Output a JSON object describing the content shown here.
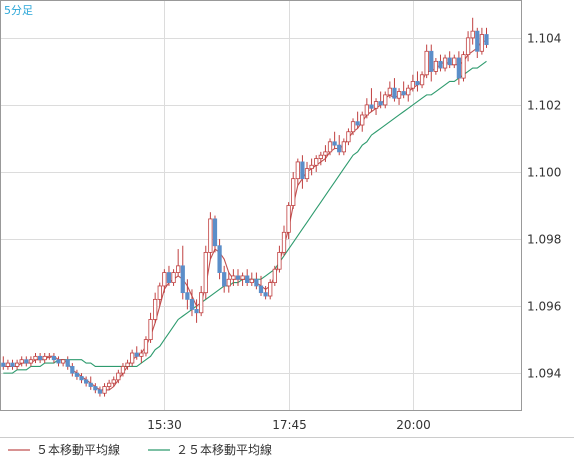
{
  "timeframe_label": "5分足",
  "colors": {
    "up_candle": "#ffffff",
    "down_candle": "#5b8ec9",
    "candle_outline": "#c04040",
    "ma5": "#c05050",
    "ma25": "#2e9b6e",
    "grid": "#dcdcdc",
    "border": "#999999",
    "timeframe": "#2aa6d8"
  },
  "legend": [
    {
      "label": "５本移動平均線",
      "color_key": "ma5"
    },
    {
      "label": "２５本移動平均線",
      "color_key": "ma25"
    }
  ],
  "chart_data": {
    "type": "candlestick",
    "x_ticks": [
      {
        "label": "15:30",
        "index": 35
      },
      {
        "label": "17:45",
        "index": 62
      },
      {
        "label": "20:00",
        "index": 89
      }
    ],
    "y_ticks": [
      "1.094",
      "1.096",
      "1.098",
      "1.100",
      "1.102",
      "1.104"
    ],
    "ylim": [
      1.0929,
      1.1051
    ],
    "bar_count": 113,
    "candles": [
      [
        1.0943,
        1.0945,
        1.0941,
        1.0942
      ],
      [
        1.0942,
        1.0944,
        1.0941,
        1.0943
      ],
      [
        1.0943,
        1.0944,
        1.0941,
        1.0942
      ],
      [
        1.0942,
        1.0944,
        1.0941,
        1.0943
      ],
      [
        1.0943,
        1.0945,
        1.0942,
        1.0944
      ],
      [
        1.0944,
        1.0945,
        1.0942,
        1.0943
      ],
      [
        1.0943,
        1.0945,
        1.0942,
        1.0944
      ],
      [
        1.0944,
        1.0946,
        1.0943,
        1.0945
      ],
      [
        1.0945,
        1.0946,
        1.0943,
        1.0944
      ],
      [
        1.0944,
        1.0946,
        1.0943,
        1.0945
      ],
      [
        1.0945,
        1.0946,
        1.0944,
        1.0945
      ],
      [
        1.0945,
        1.0946,
        1.0943,
        1.0944
      ],
      [
        1.0944,
        1.0945,
        1.0942,
        1.0943
      ],
      [
        1.0943,
        1.0944,
        1.0942,
        1.0944
      ],
      [
        1.0944,
        1.0945,
        1.0941,
        1.0942
      ],
      [
        1.0942,
        1.0943,
        1.0939,
        1.094
      ],
      [
        1.094,
        1.0941,
        1.0938,
        1.0939
      ],
      [
        1.0939,
        1.094,
        1.0937,
        1.0938
      ],
      [
        1.0938,
        1.0939,
        1.0936,
        1.0937
      ],
      [
        1.0937,
        1.0939,
        1.0935,
        1.0936
      ],
      [
        1.0936,
        1.0937,
        1.0934,
        1.0935
      ],
      [
        1.0935,
        1.0936,
        1.0933,
        1.0934
      ],
      [
        1.0934,
        1.0937,
        1.0933,
        1.0936
      ],
      [
        1.0936,
        1.0938,
        1.0935,
        1.0937
      ],
      [
        1.0937,
        1.0939,
        1.0936,
        1.0938
      ],
      [
        1.0938,
        1.0941,
        1.0937,
        1.094
      ],
      [
        1.094,
        1.0943,
        1.0939,
        1.0942
      ],
      [
        1.0942,
        1.0944,
        1.0941,
        1.0943
      ],
      [
        1.0943,
        1.0947,
        1.0942,
        1.0946
      ],
      [
        1.0946,
        1.0948,
        1.0944,
        1.0945
      ],
      [
        1.0945,
        1.0947,
        1.0943,
        1.0946
      ],
      [
        1.0946,
        1.0951,
        1.0945,
        1.095
      ],
      [
        1.095,
        1.0958,
        1.0949,
        1.0956
      ],
      [
        1.0956,
        1.0964,
        1.0955,
        1.0962
      ],
      [
        1.0962,
        1.0967,
        1.096,
        1.0966
      ],
      [
        1.0966,
        1.0971,
        1.0964,
        1.097
      ],
      [
        1.097,
        1.0972,
        1.0966,
        1.0967
      ],
      [
        1.0967,
        1.0971,
        1.0966,
        1.097
      ],
      [
        1.097,
        1.0977,
        1.0969,
        1.0972
      ],
      [
        1.0972,
        1.0978,
        1.0962,
        1.0964
      ],
      [
        1.0964,
        1.0968,
        1.0959,
        1.0962
      ],
      [
        1.0962,
        1.0965,
        1.0957,
        1.0959
      ],
      [
        1.0959,
        1.0962,
        1.0955,
        1.0958
      ],
      [
        1.0958,
        1.0966,
        1.0957,
        1.0964
      ],
      [
        1.0964,
        1.0978,
        1.0962,
        1.0976
      ],
      [
        1.0976,
        1.0988,
        1.0974,
        1.0986
      ],
      [
        1.0986,
        1.0987,
        1.0976,
        1.0978
      ],
      [
        1.0978,
        1.098,
        1.0968,
        1.097
      ],
      [
        1.097,
        1.0972,
        1.0964,
        1.0966
      ],
      [
        1.0966,
        1.097,
        1.0964,
        1.0968
      ],
      [
        1.0968,
        1.0971,
        1.0966,
        1.0969
      ],
      [
        1.0969,
        1.0971,
        1.0966,
        1.0968
      ],
      [
        1.0968,
        1.097,
        1.0966,
        1.0969
      ],
      [
        1.0969,
        1.0971,
        1.0966,
        1.0967
      ],
      [
        1.0967,
        1.097,
        1.0966,
        1.0968
      ],
      [
        1.0968,
        1.097,
        1.0965,
        1.0966
      ],
      [
        1.0966,
        1.0969,
        1.0963,
        1.0964
      ],
      [
        1.0964,
        1.0966,
        1.0962,
        1.0963
      ],
      [
        1.0963,
        1.0968,
        1.0962,
        1.0967
      ],
      [
        1.0967,
        1.0972,
        1.0966,
        1.0971
      ],
      [
        1.0971,
        1.0978,
        1.097,
        1.0976
      ],
      [
        1.0976,
        1.0984,
        1.0975,
        1.0982
      ],
      [
        1.0982,
        1.0991,
        1.098,
        1.099
      ],
      [
        1.099,
        1.1,
        1.0989,
        1.0998
      ],
      [
        1.0998,
        1.1004,
        1.0996,
        1.1003
      ],
      [
        1.1003,
        1.1005,
        1.0995,
        1.0998
      ],
      [
        1.0998,
        1.1003,
        1.0997,
        1.1001
      ],
      [
        1.1001,
        1.1004,
        1.0999,
        1.1002
      ],
      [
        1.1002,
        1.1005,
        1.1,
        1.1004
      ],
      [
        1.1004,
        1.1006,
        1.1002,
        1.1005
      ],
      [
        1.1005,
        1.1008,
        1.1003,
        1.1006
      ],
      [
        1.1006,
        1.101,
        1.1005,
        1.1009
      ],
      [
        1.1009,
        1.1012,
        1.1007,
        1.1008
      ],
      [
        1.1008,
        1.1011,
        1.1005,
        1.1006
      ],
      [
        1.1006,
        1.101,
        1.1005,
        1.1009
      ],
      [
        1.1009,
        1.1013,
        1.1008,
        1.1012
      ],
      [
        1.1012,
        1.1016,
        1.1011,
        1.1015
      ],
      [
        1.1015,
        1.1018,
        1.1013,
        1.1014
      ],
      [
        1.1014,
        1.1018,
        1.1012,
        1.1017
      ],
      [
        1.1017,
        1.1022,
        1.1016,
        1.102
      ],
      [
        1.102,
        1.1025,
        1.1018,
        1.1019
      ],
      [
        1.1019,
        1.1022,
        1.1017,
        1.1021
      ],
      [
        1.1021,
        1.1024,
        1.1019,
        1.102
      ],
      [
        1.102,
        1.1024,
        1.1019,
        1.1023
      ],
      [
        1.1023,
        1.1027,
        1.1022,
        1.1025
      ],
      [
        1.1025,
        1.1028,
        1.1021,
        1.1022
      ],
      [
        1.1022,
        1.1025,
        1.102,
        1.1024
      ],
      [
        1.1024,
        1.1027,
        1.1022,
        1.1023
      ],
      [
        1.1023,
        1.1026,
        1.1021,
        1.1025
      ],
      [
        1.1025,
        1.1029,
        1.1024,
        1.1027
      ],
      [
        1.1027,
        1.103,
        1.1024,
        1.1026
      ],
      [
        1.1026,
        1.103,
        1.1025,
        1.1029
      ],
      [
        1.1029,
        1.1038,
        1.1028,
        1.1036
      ],
      [
        1.1036,
        1.1038,
        1.1027,
        1.103
      ],
      [
        1.103,
        1.1034,
        1.1029,
        1.1033
      ],
      [
        1.1033,
        1.1035,
        1.103,
        1.1031
      ],
      [
        1.1031,
        1.1035,
        1.103,
        1.1034
      ],
      [
        1.1034,
        1.1036,
        1.1031,
        1.1032
      ],
      [
        1.1032,
        1.1035,
        1.1031,
        1.1034
      ],
      [
        1.1034,
        1.1036,
        1.1026,
        1.1028
      ],
      [
        1.1028,
        1.1036,
        1.1027,
        1.1035
      ],
      [
        1.1035,
        1.1042,
        1.1033,
        1.104
      ],
      [
        1.104,
        1.1046,
        1.1038,
        1.1042
      ],
      [
        1.1042,
        1.1043,
        1.1034,
        1.1036
      ],
      [
        1.1036,
        1.1043,
        1.1035,
        1.1041
      ],
      [
        1.1041,
        1.1043,
        1.1037,
        1.1038
      ]
    ],
    "ma5": [
      1.0942,
      1.0942,
      1.0942,
      1.0942,
      1.0943,
      1.0943,
      1.0943,
      1.0944,
      1.0944,
      1.0944,
      1.0945,
      1.0945,
      1.0944,
      1.0944,
      1.0943,
      1.0941,
      1.094,
      1.0939,
      1.0938,
      1.0937,
      1.0936,
      1.0935,
      1.0935,
      1.0935,
      1.0936,
      1.0938,
      1.094,
      1.0942,
      1.0944,
      1.0945,
      1.0946,
      1.0948,
      1.0951,
      1.0955,
      1.096,
      1.0965,
      1.0967,
      1.0968,
      1.0969,
      1.0968,
      1.0966,
      1.0963,
      1.096,
      1.0961,
      1.0966,
      1.0974,
      1.0977,
      1.0976,
      1.0974,
      1.097,
      1.0968,
      1.0968,
      1.0968,
      1.0968,
      1.0968,
      1.0967,
      1.0966,
      1.0965,
      1.0966,
      1.0969,
      1.0973,
      1.0978,
      1.0983,
      1.099,
      1.0996,
      1.0998,
      1.1,
      1.1001,
      1.1002,
      1.1003,
      1.1004,
      1.1006,
      1.1007,
      1.1007,
      1.1008,
      1.101,
      1.1012,
      1.1013,
      1.1015,
      1.1017,
      1.1018,
      1.1019,
      1.102,
      1.1022,
      1.1023,
      1.1022,
      1.1023,
      1.1023,
      1.1024,
      1.1025,
      1.1026,
      1.1027,
      1.103,
      1.103,
      1.1031,
      1.1032,
      1.1033,
      1.1032,
      1.1032,
      1.1032,
      1.1033,
      1.1035,
      1.1036,
      1.1037,
      1.1039,
      1.1039
    ],
    "ma25": [
      1.094,
      1.094,
      1.094,
      1.0941,
      1.0941,
      1.0941,
      1.0942,
      1.0942,
      1.0942,
      1.0943,
      1.0943,
      1.0943,
      1.0944,
      1.0944,
      1.0944,
      1.0944,
      1.0944,
      1.0944,
      1.0943,
      1.0943,
      1.0942,
      1.0942,
      1.0942,
      1.0942,
      1.0942,
      1.0942,
      1.0942,
      1.0942,
      1.0942,
      1.0942,
      1.0943,
      1.0944,
      1.0945,
      1.0947,
      1.0948,
      1.095,
      1.0952,
      1.0954,
      1.0956,
      1.0957,
      1.0958,
      1.0959,
      1.096,
      1.0961,
      1.0962,
      1.0963,
      1.0964,
      1.0965,
      1.0966,
      1.0966,
      1.0967,
      1.0967,
      1.0968,
      1.0968,
      1.0968,
      1.0968,
      1.0968,
      1.0969,
      1.097,
      1.0971,
      1.0973,
      1.0975,
      1.0977,
      1.0979,
      1.0981,
      1.0983,
      1.0985,
      1.0987,
      1.0989,
      1.0991,
      1.0993,
      1.0995,
      1.0997,
      1.0999,
      1.1001,
      1.1003,
      1.1005,
      1.1006,
      1.1008,
      1.1009,
      1.1011,
      1.1012,
      1.1013,
      1.1014,
      1.1015,
      1.1016,
      1.1017,
      1.1018,
      1.1019,
      1.102,
      1.1021,
      1.1022,
      1.1023,
      1.1023,
      1.1024,
      1.1025,
      1.1026,
      1.1027,
      1.1027,
      1.1028,
      1.1029,
      1.103,
      1.1031,
      1.1031,
      1.1032,
      1.1033
    ]
  }
}
